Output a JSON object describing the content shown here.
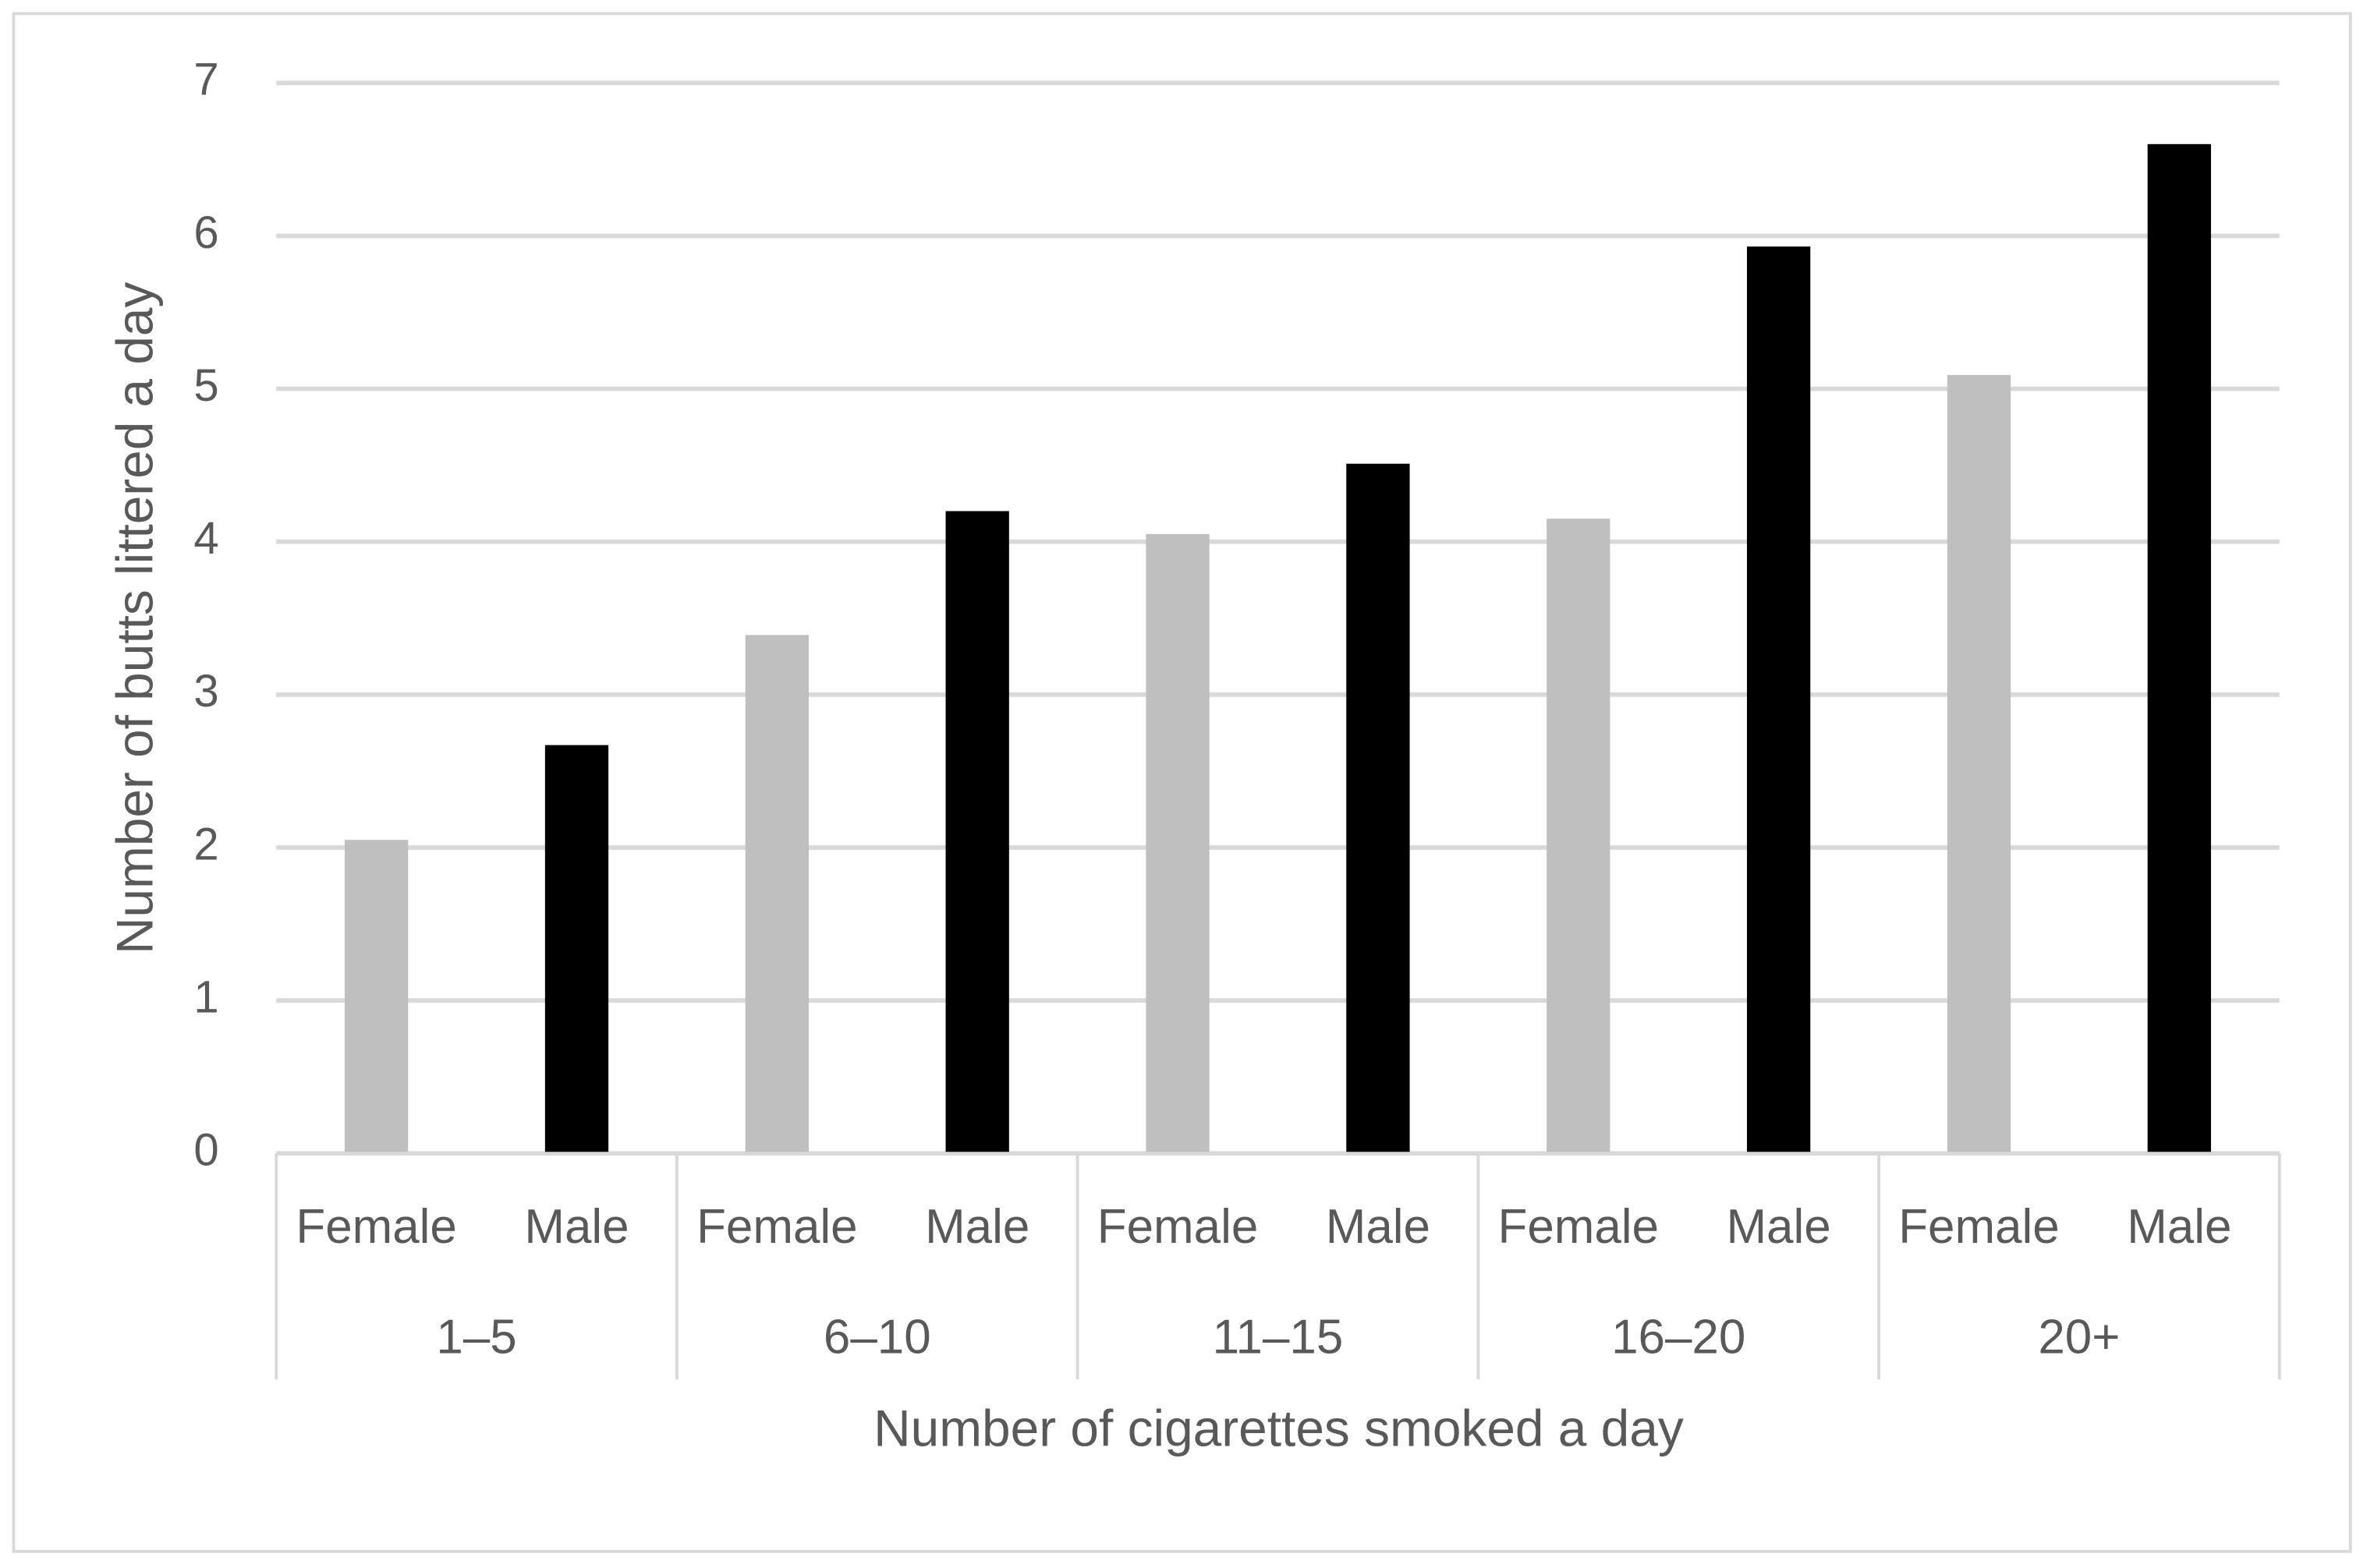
{
  "chart_data": {
    "type": "bar",
    "x_label": "Number of cigarettes smoked a day",
    "y_label": "Number of butts littered a day",
    "categories": [
      "1–5",
      "6–10",
      "11–15",
      "16–20",
      "20+"
    ],
    "series": [
      {
        "name": "Female",
        "color": "#bfbfbf",
        "values": [
          2.05,
          3.39,
          4.05,
          4.15,
          5.09
        ]
      },
      {
        "name": "Male",
        "color": "#000000",
        "values": [
          2.67,
          4.2,
          4.51,
          5.93,
          6.6
        ]
      }
    ],
    "ylim": [
      0,
      7
    ],
    "yticks": [
      0,
      1,
      2,
      3,
      4,
      5,
      6,
      7
    ],
    "grid": true
  }
}
